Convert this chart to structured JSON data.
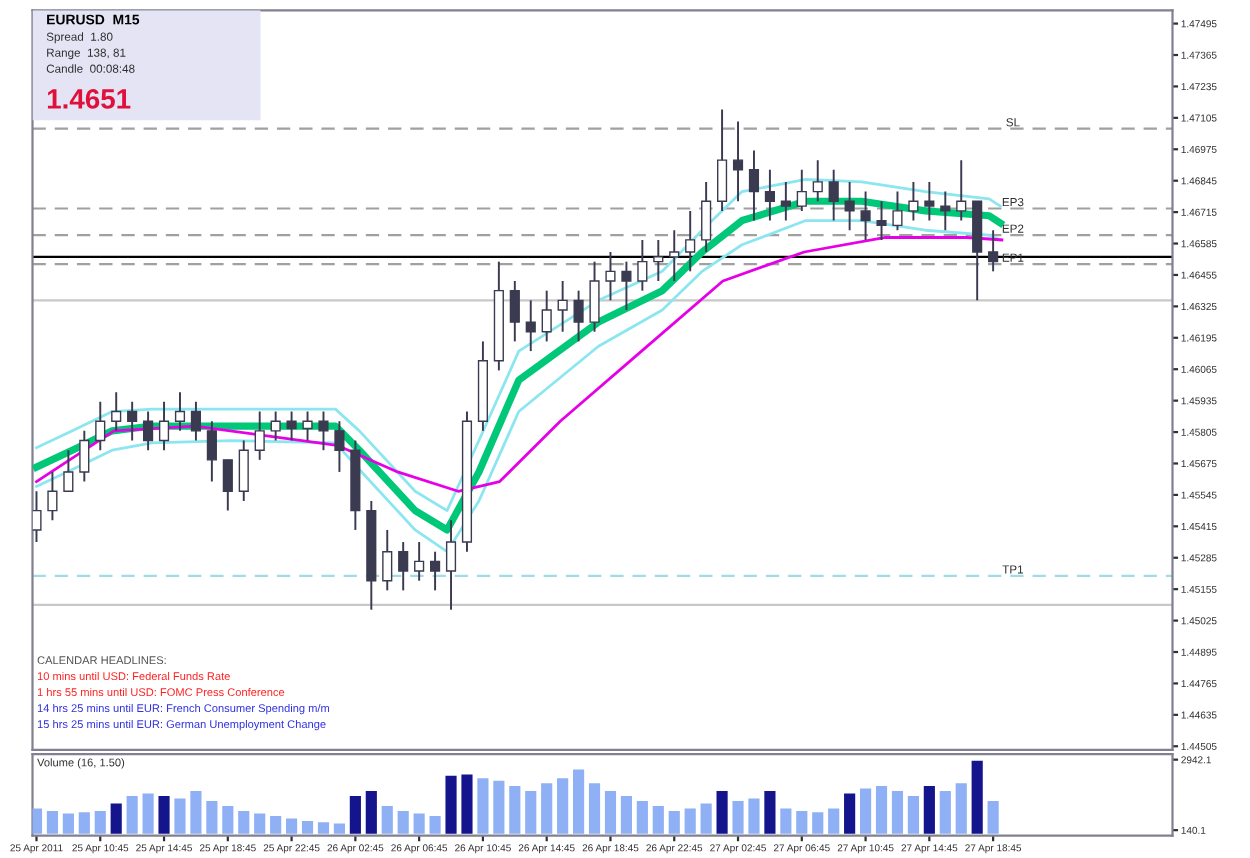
{
  "chart_data": [
    {
      "type": "candlestick",
      "title": "EURUSD  M15",
      "annotations": [
        "Spread  1.80",
        "Range  138, 81",
        "Candle  00:08:48",
        "1.4651",
        "CALENDAR HEADLINES:",
        "10 mins until USD: Federal Funds Rate",
        "1 hrs 55 mins until USD: FOMC Press Conference",
        "14 hrs 25 mins until EUR: French Consumer Spending m/m",
        "15 hrs 25 mins until EUR: German Unemployment Change"
      ],
      "x": [
        "2011-04-25T06:45",
        "2011-04-25T07:45",
        "2011-04-25T08:45",
        "2011-04-25T09:45",
        "2011-04-25T10:45",
        "2011-04-25T11:45",
        "2011-04-25T12:45",
        "2011-04-25T13:45",
        "2011-04-25T14:45",
        "2011-04-25T15:45",
        "2011-04-25T16:45",
        "2011-04-25T17:45",
        "2011-04-25T18:45",
        "2011-04-25T19:45",
        "2011-04-25T20:45",
        "2011-04-25T21:45",
        "2011-04-25T22:45",
        "2011-04-25T23:45",
        "2011-04-26T00:45",
        "2011-04-26T01:45",
        "2011-04-26T02:45",
        "2011-04-26T03:45",
        "2011-04-26T04:45",
        "2011-04-26T05:45",
        "2011-04-26T06:45",
        "2011-04-26T07:45",
        "2011-04-26T08:45",
        "2011-04-26T09:45",
        "2011-04-26T10:45",
        "2011-04-26T11:45",
        "2011-04-26T12:45",
        "2011-04-26T13:45",
        "2011-04-26T14:45",
        "2011-04-26T15:45",
        "2011-04-26T16:45",
        "2011-04-26T17:45",
        "2011-04-26T18:45",
        "2011-04-26T19:45",
        "2011-04-26T20:45",
        "2011-04-26T21:45",
        "2011-04-26T22:45",
        "2011-04-26T23:45",
        "2011-04-27T00:45",
        "2011-04-27T01:45",
        "2011-04-27T02:45",
        "2011-04-27T03:45",
        "2011-04-27T04:45",
        "2011-04-27T05:45",
        "2011-04-27T06:45",
        "2011-04-27T07:45",
        "2011-04-27T08:45",
        "2011-04-27T09:45",
        "2011-04-27T10:45",
        "2011-04-27T11:45",
        "2011-04-27T12:45",
        "2011-04-27T13:45",
        "2011-04-27T14:45",
        "2011-04-27T15:45",
        "2011-04-27T16:45",
        "2011-04-27T17:45",
        "2011-04-27T18:45"
      ],
      "ohlc": [
        [
          1.454,
          1.4556,
          1.4535,
          1.4548
        ],
        [
          1.4548,
          1.4564,
          1.4544,
          1.4556
        ],
        [
          1.4556,
          1.4573,
          1.4556,
          1.4564
        ],
        [
          1.4564,
          1.4581,
          1.456,
          1.4577
        ],
        [
          1.4577,
          1.4593,
          1.4573,
          1.4585
        ],
        [
          1.4585,
          1.4597,
          1.4581,
          1.4589
        ],
        [
          1.4589,
          1.4593,
          1.4577,
          1.4585
        ],
        [
          1.4585,
          1.4589,
          1.4573,
          1.4577
        ],
        [
          1.4577,
          1.4593,
          1.4573,
          1.4585
        ],
        [
          1.4585,
          1.4597,
          1.4581,
          1.4589
        ],
        [
          1.4589,
          1.4593,
          1.4577,
          1.4581
        ],
        [
          1.4581,
          1.4585,
          1.456,
          1.4569
        ],
        [
          1.4569,
          1.4569,
          1.4548,
          1.4556
        ],
        [
          1.4556,
          1.4577,
          1.4552,
          1.4573
        ],
        [
          1.4573,
          1.4589,
          1.4569,
          1.4581
        ],
        [
          1.4581,
          1.4589,
          1.4577,
          1.4585
        ],
        [
          1.4585,
          1.4589,
          1.4577,
          1.4582
        ],
        [
          1.4582,
          1.4589,
          1.4577,
          1.4585
        ],
        [
          1.4585,
          1.4589,
          1.4573,
          1.4581
        ],
        [
          1.4581,
          1.4585,
          1.4564,
          1.4573
        ],
        [
          1.4573,
          1.4577,
          1.454,
          1.4548
        ],
        [
          1.4548,
          1.4552,
          1.4507,
          1.4519
        ],
        [
          1.4519,
          1.454,
          1.4515,
          1.4531
        ],
        [
          1.4531,
          1.4535,
          1.4515,
          1.4523
        ],
        [
          1.4523,
          1.4535,
          1.4519,
          1.4527
        ],
        [
          1.4527,
          1.4531,
          1.4515,
          1.4523
        ],
        [
          1.4523,
          1.4544,
          1.4507,
          1.4535
        ],
        [
          1.4535,
          1.4589,
          1.4531,
          1.4585
        ],
        [
          1.4585,
          1.4618,
          1.4581,
          1.461
        ],
        [
          1.461,
          1.4651,
          1.4606,
          1.4639
        ],
        [
          1.4639,
          1.4643,
          1.4618,
          1.4626
        ],
        [
          1.4626,
          1.4635,
          1.4614,
          1.4622
        ],
        [
          1.4622,
          1.4639,
          1.4618,
          1.4631
        ],
        [
          1.4631,
          1.4643,
          1.4622,
          1.4635
        ],
        [
          1.4635,
          1.4639,
          1.4618,
          1.4626
        ],
        [
          1.4626,
          1.4651,
          1.4622,
          1.4643
        ],
        [
          1.4643,
          1.4655,
          1.4635,
          1.4647
        ],
        [
          1.4647,
          1.4651,
          1.4631,
          1.4643
        ],
        [
          1.4643,
          1.466,
          1.4639,
          1.4651
        ],
        [
          1.4651,
          1.466,
          1.4643,
          1.4653
        ],
        [
          1.4653,
          1.4664,
          1.4643,
          1.4655
        ],
        [
          1.4655,
          1.4672,
          1.4647,
          1.466
        ],
        [
          1.466,
          1.4684,
          1.4655,
          1.4676
        ],
        [
          1.4676,
          1.4714,
          1.4672,
          1.4693
        ],
        [
          1.4693,
          1.4709,
          1.4676,
          1.4689
        ],
        [
          1.4689,
          1.4697,
          1.4668,
          1.468
        ],
        [
          1.468,
          1.4689,
          1.4668,
          1.4676
        ],
        [
          1.4676,
          1.4684,
          1.4668,
          1.4674
        ],
        [
          1.4674,
          1.4689,
          1.4672,
          1.468
        ],
        [
          1.468,
          1.4693,
          1.4676,
          1.4684
        ],
        [
          1.4684,
          1.4689,
          1.4668,
          1.4676
        ],
        [
          1.4676,
          1.4684,
          1.4664,
          1.4672
        ],
        [
          1.4672,
          1.468,
          1.466,
          1.4668
        ],
        [
          1.4668,
          1.4676,
          1.466,
          1.4666
        ],
        [
          1.4666,
          1.468,
          1.4664,
          1.4672
        ],
        [
          1.4672,
          1.4684,
          1.4668,
          1.4676
        ],
        [
          1.4676,
          1.4684,
          1.4668,
          1.4674
        ],
        [
          1.4674,
          1.468,
          1.4664,
          1.4672
        ],
        [
          1.4672,
          1.4693,
          1.4668,
          1.4676
        ],
        [
          1.4676,
          1.4676,
          1.4635,
          1.4655
        ],
        [
          1.4655,
          1.4664,
          1.4647,
          1.4651
        ]
      ],
      "series": [
        {
          "type": "line",
          "color": "#00c878",
          "x": [
            "2011-04-25T06:45",
            "2011-04-25T09:00",
            "2011-04-25T11:30",
            "2011-04-25T14:00",
            "2011-04-25T19:00",
            "2011-04-26T01:30",
            "2011-04-26T03:00",
            "2011-04-26T06:30",
            "2011-04-26T08:30",
            "2011-04-26T10:30",
            "2011-04-26T13:00",
            "2011-04-26T18:00",
            "2011-04-26T22:00",
            "2011-04-27T00:30",
            "2011-04-27T03:00",
            "2011-04-27T07:00",
            "2011-04-27T10:30",
            "2011-04-27T14:30",
            "2011-04-27T18:30",
            "2011-04-27T19:12"
          ],
          "values": [
            1.4566,
            1.4573,
            1.4581,
            1.4583,
            1.4583,
            1.4583,
            1.4573,
            1.4548,
            1.454,
            1.4564,
            1.4602,
            1.4626,
            1.4639,
            1.4655,
            1.4668,
            1.4676,
            1.4676,
            1.4672,
            1.467,
            1.4667
          ]
        },
        {
          "type": "line",
          "color": "#8ce6f0",
          "x": [
            "2011-04-25T06:45",
            "2011-04-25T09:00",
            "2011-04-25T11:30",
            "2011-04-25T14:00",
            "2011-04-25T19:00",
            "2011-04-26T01:30",
            "2011-04-26T03:00",
            "2011-04-26T06:30",
            "2011-04-26T08:30",
            "2011-04-26T10:30",
            "2011-04-26T13:00",
            "2011-04-26T18:00",
            "2011-04-26T22:00",
            "2011-04-27T00:30",
            "2011-04-27T03:00",
            "2011-04-27T07:00",
            "2011-04-27T10:30",
            "2011-04-27T14:30",
            "2011-04-27T18:30",
            "2011-04-27T19:12"
          ],
          "values": [
            1.4574,
            1.4581,
            1.4589,
            1.459,
            1.459,
            1.459,
            1.4581,
            1.4556,
            1.4548,
            1.4577,
            1.4614,
            1.4635,
            1.4647,
            1.4664,
            1.468,
            1.4685,
            1.4684,
            1.468,
            1.4677,
            1.4674
          ]
        },
        {
          "type": "line",
          "color": "#8ce6f0",
          "x": [
            "2011-04-25T06:45",
            "2011-04-25T09:00",
            "2011-04-25T11:30",
            "2011-04-25T14:00",
            "2011-04-25T19:00",
            "2011-04-26T01:30",
            "2011-04-26T03:00",
            "2011-04-26T06:30",
            "2011-04-26T08:30",
            "2011-04-26T10:30",
            "2011-04-26T13:00",
            "2011-04-26T18:00",
            "2011-04-26T22:00",
            "2011-04-27T00:30",
            "2011-04-27T03:00",
            "2011-04-27T07:00",
            "2011-04-27T10:30",
            "2011-04-27T14:30",
            "2011-04-27T18:30",
            "2011-04-27T19:12"
          ],
          "values": [
            1.4558,
            1.4565,
            1.4573,
            1.4576,
            1.4577,
            1.4576,
            1.4565,
            1.454,
            1.4531,
            1.4552,
            1.4589,
            1.4616,
            1.4631,
            1.4647,
            1.4658,
            1.4668,
            1.4668,
            1.4664,
            1.4662,
            1.466
          ]
        },
        {
          "type": "line",
          "color": "#e600e6",
          "x": [
            "2011-04-25T06:45",
            "2011-04-25T11:36",
            "2011-04-25T16:42",
            "2011-04-26T01:36",
            "2011-04-26T05:24",
            "2011-04-26T09:12",
            "2011-04-26T11:48",
            "2011-04-26T15:36",
            "2011-04-26T20:42",
            "2011-04-27T01:48",
            "2011-04-27T06:54",
            "2011-04-27T12:00",
            "2011-04-27T17:06",
            "2011-04-27T19:18"
          ],
          "values": [
            1.456,
            1.4581,
            1.4583,
            1.4575,
            1.4564,
            1.4556,
            1.456,
            1.4585,
            1.4614,
            1.4643,
            1.4655,
            1.4661,
            1.4661,
            1.466
          ]
        }
      ],
      "ref_lines": [
        {
          "axis": "y",
          "value": 1.4706,
          "label": "SL",
          "color": "#a0a0a0",
          "line_style": "dashed"
        },
        {
          "axis": "y",
          "value": 1.4673,
          "label": "EP3",
          "color": "#a0a0a0",
          "line_style": "dashed"
        },
        {
          "axis": "y",
          "value": 1.4662,
          "label": "EP2",
          "color": "#a0a0a0",
          "line_style": "dashed"
        },
        {
          "axis": "y",
          "value": 1.4653,
          "label": null,
          "color": "#000000",
          "line_style": "solid"
        },
        {
          "axis": "y",
          "value": 1.465,
          "label": "EP1",
          "color": "#a0a0a0",
          "line_style": "dashed"
        },
        {
          "axis": "y",
          "value": 1.4635,
          "label": null,
          "color": "#c8c8c8",
          "line_style": "solid"
        },
        {
          "axis": "y",
          "value": 1.4521,
          "label": "TP1",
          "color": "#a0dce6",
          "line_style": "dashed"
        },
        {
          "axis": "y",
          "value": 1.4509,
          "label": null,
          "color": "#c8c8c8",
          "line_style": "solid"
        }
      ],
      "xlim": [
        "2011-04-25T06:30",
        "2011-04-28T06:00"
      ],
      "ylim": [
        1.4449,
        1.4755
      ],
      "yticks": [
        1.44505,
        1.44635,
        1.44765,
        1.44895,
        1.45025,
        1.45155,
        1.45285,
        1.45415,
        1.45545,
        1.45675,
        1.45805,
        1.45935,
        1.46065,
        1.46195,
        1.46325,
        1.46455,
        1.46585,
        1.46715,
        1.46845,
        1.46975,
        1.47105,
        1.47235,
        1.47365,
        1.47495
      ],
      "tick_labels": "y"
    },
    {
      "type": "bar",
      "title": "Volume (16, 1.50)",
      "x": [
        "2011-04-25T06:45",
        "2011-04-25T07:45",
        "2011-04-25T08:45",
        "2011-04-25T09:45",
        "2011-04-25T10:45",
        "2011-04-25T11:45",
        "2011-04-25T12:45",
        "2011-04-25T13:45",
        "2011-04-25T14:45",
        "2011-04-25T15:45",
        "2011-04-25T16:45",
        "2011-04-25T17:45",
        "2011-04-25T18:45",
        "2011-04-25T19:45",
        "2011-04-25T20:45",
        "2011-04-25T21:45",
        "2011-04-25T22:45",
        "2011-04-25T23:45",
        "2011-04-26T00:45",
        "2011-04-26T01:45",
        "2011-04-26T02:45",
        "2011-04-26T03:45",
        "2011-04-26T04:45",
        "2011-04-26T05:45",
        "2011-04-26T06:45",
        "2011-04-26T07:45",
        "2011-04-26T08:45",
        "2011-04-26T09:45",
        "2011-04-26T10:45",
        "2011-04-26T11:45",
        "2011-04-26T12:45",
        "2011-04-26T13:45",
        "2011-04-26T14:45",
        "2011-04-26T15:45",
        "2011-04-26T16:45",
        "2011-04-26T17:45",
        "2011-04-26T18:45",
        "2011-04-26T19:45",
        "2011-04-26T20:45",
        "2011-04-26T21:45",
        "2011-04-26T22:45",
        "2011-04-26T23:45",
        "2011-04-27T00:45",
        "2011-04-27T01:45",
        "2011-04-27T02:45",
        "2011-04-27T03:45",
        "2011-04-27T04:45",
        "2011-04-27T05:45",
        "2011-04-27T06:45",
        "2011-04-27T07:45",
        "2011-04-27T08:45",
        "2011-04-27T09:45",
        "2011-04-27T10:45",
        "2011-04-27T11:45",
        "2011-04-27T12:45",
        "2011-04-27T13:45",
        "2011-04-27T14:45",
        "2011-04-27T15:45",
        "2011-04-27T16:45",
        "2011-04-27T17:45",
        "2011-04-27T18:45"
      ],
      "values": [
        1000,
        900,
        800,
        850,
        900,
        1200,
        1500,
        1600,
        1500,
        1400,
        1700,
        1300,
        1100,
        900,
        800,
        700,
        600,
        500,
        450,
        400,
        1500,
        1700,
        1100,
        900,
        800,
        700,
        2300,
        2350,
        2200,
        2100,
        1900,
        1700,
        2000,
        2200,
        2550,
        2000,
        1700,
        1500,
        1300,
        1100,
        900,
        1000,
        1200,
        1700,
        1300,
        1400,
        1700,
        1000,
        900,
        850,
        1000,
        1600,
        1800,
        1900,
        1700,
        1500,
        1900,
        1700,
        2000,
        2900,
        1300
      ],
      "colors": [
        "#8fb0f5",
        "#8fb0f5",
        "#8fb0f5",
        "#8fb0f5",
        "#8fb0f5",
        "#14148c",
        "#8fb0f5",
        "#8fb0f5",
        "#14148c",
        "#8fb0f5",
        "#8fb0f5",
        "#8fb0f5",
        "#8fb0f5",
        "#8fb0f5",
        "#8fb0f5",
        "#8fb0f5",
        "#8fb0f5",
        "#8fb0f5",
        "#8fb0f5",
        "#8fb0f5",
        "#14148c",
        "#14148c",
        "#8fb0f5",
        "#8fb0f5",
        "#8fb0f5",
        "#8fb0f5",
        "#14148c",
        "#14148c",
        "#8fb0f5",
        "#8fb0f5",
        "#8fb0f5",
        "#8fb0f5",
        "#8fb0f5",
        "#8fb0f5",
        "#8fb0f5",
        "#8fb0f5",
        "#8fb0f5",
        "#8fb0f5",
        "#8fb0f5",
        "#8fb0f5",
        "#8fb0f5",
        "#8fb0f5",
        "#8fb0f5",
        "#14148c",
        "#8fb0f5",
        "#8fb0f5",
        "#14148c",
        "#8fb0f5",
        "#8fb0f5",
        "#8fb0f5",
        "#8fb0f5",
        "#14148c",
        "#8fb0f5",
        "#8fb0f5",
        "#8fb0f5",
        "#8fb0f5",
        "#14148c",
        "#8fb0f5",
        "#8fb0f5",
        "#14148c",
        "#8fb0f5"
      ],
      "xlim": [
        "2011-04-25T06:30",
        "2011-04-28T06:00"
      ],
      "ylim": [
        -80,
        3160
      ],
      "xticks": [
        {
          "value": "2011-04-25T06:45",
          "label": "25 Apr 2011"
        },
        {
          "value": "2011-04-25T10:45",
          "label": "25 Apr 10:45"
        },
        {
          "value": "2011-04-25T14:45",
          "label": "25 Apr 14:45"
        },
        {
          "value": "2011-04-25T18:45",
          "label": "25 Apr 18:45"
        },
        {
          "value": "2011-04-25T22:45",
          "label": "25 Apr 22:45"
        },
        {
          "value": "2011-04-26T02:45",
          "label": "26 Apr 02:45"
        },
        {
          "value": "2011-04-26T06:45",
          "label": "26 Apr 06:45"
        },
        {
          "value": "2011-04-26T10:45",
          "label": "26 Apr 10:45"
        },
        {
          "value": "2011-04-26T14:45",
          "label": "26 Apr 14:45"
        },
        {
          "value": "2011-04-26T18:45",
          "label": "26 Apr 18:45"
        },
        {
          "value": "2011-04-26T22:45",
          "label": "26 Apr 22:45"
        },
        {
          "value": "2011-04-27T02:45",
          "label": "27 Apr 02:45"
        },
        {
          "value": "2011-04-27T06:45",
          "label": "27 Apr 06:45"
        },
        {
          "value": "2011-04-27T10:45",
          "label": "27 Apr 10:45"
        },
        {
          "value": "2011-04-27T14:45",
          "label": "27 Apr 14:45"
        },
        {
          "value": "2011-04-27T18:45",
          "label": "27 Apr 18:45"
        }
      ],
      "yticks": [
        140.1,
        2942.1
      ]
    }
  ]
}
